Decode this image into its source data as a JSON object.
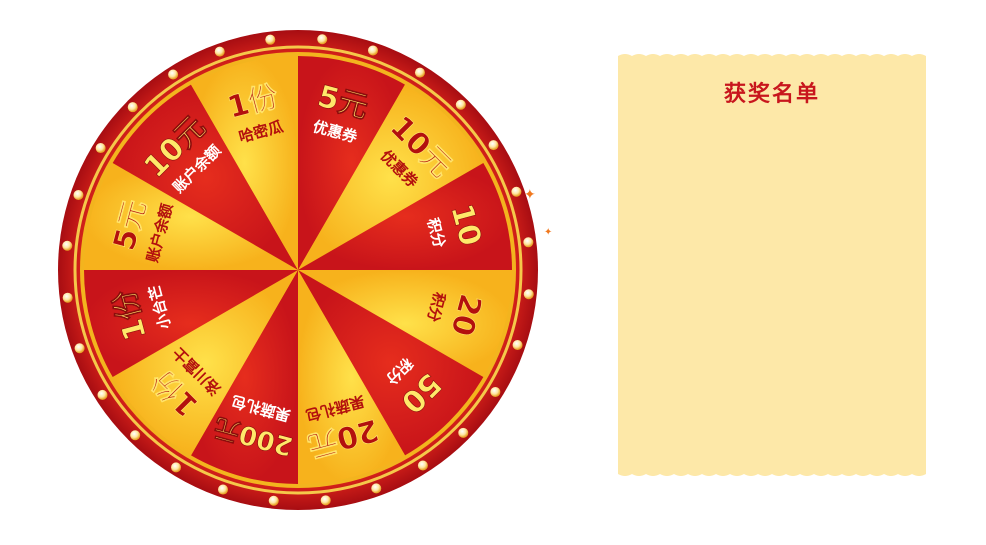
{
  "wheel": {
    "segments": [
      {
        "amount": "5元",
        "name": "优惠券",
        "color": "red"
      },
      {
        "amount": "10元",
        "name": "优惠券",
        "color": "yellow"
      },
      {
        "amount": "10",
        "name": "积分",
        "color": "red"
      },
      {
        "amount": "20",
        "name": "积分",
        "color": "yellow"
      },
      {
        "amount": "50",
        "name": "积分",
        "color": "red"
      },
      {
        "amount": "20元",
        "name": "果蔬礼包",
        "color": "yellow"
      },
      {
        "amount": "200元",
        "name": "果蔬礼包",
        "color": "red"
      },
      {
        "amount": "1份",
        "name": "洛川富士",
        "color": "yellow"
      },
      {
        "amount": "1份",
        "name": "小台芒",
        "color": "red"
      },
      {
        "amount": "5元",
        "name": "账户余额",
        "color": "yellow"
      },
      {
        "amount": "10元",
        "name": "账户余额",
        "color": "red"
      },
      {
        "amount": "1份",
        "name": "哈密瓜",
        "color": "yellow"
      }
    ],
    "colors": {
      "red": "#d31f16",
      "yellow": "#fbbf1a",
      "rim": "#c8141b",
      "gold": "#f6c443",
      "text_dark": "#b3100e",
      "text_light": "#ffe86a"
    }
  },
  "winners": {
    "title": "获奖名单",
    "items": [],
    "panel_color": "#fde8a8"
  }
}
